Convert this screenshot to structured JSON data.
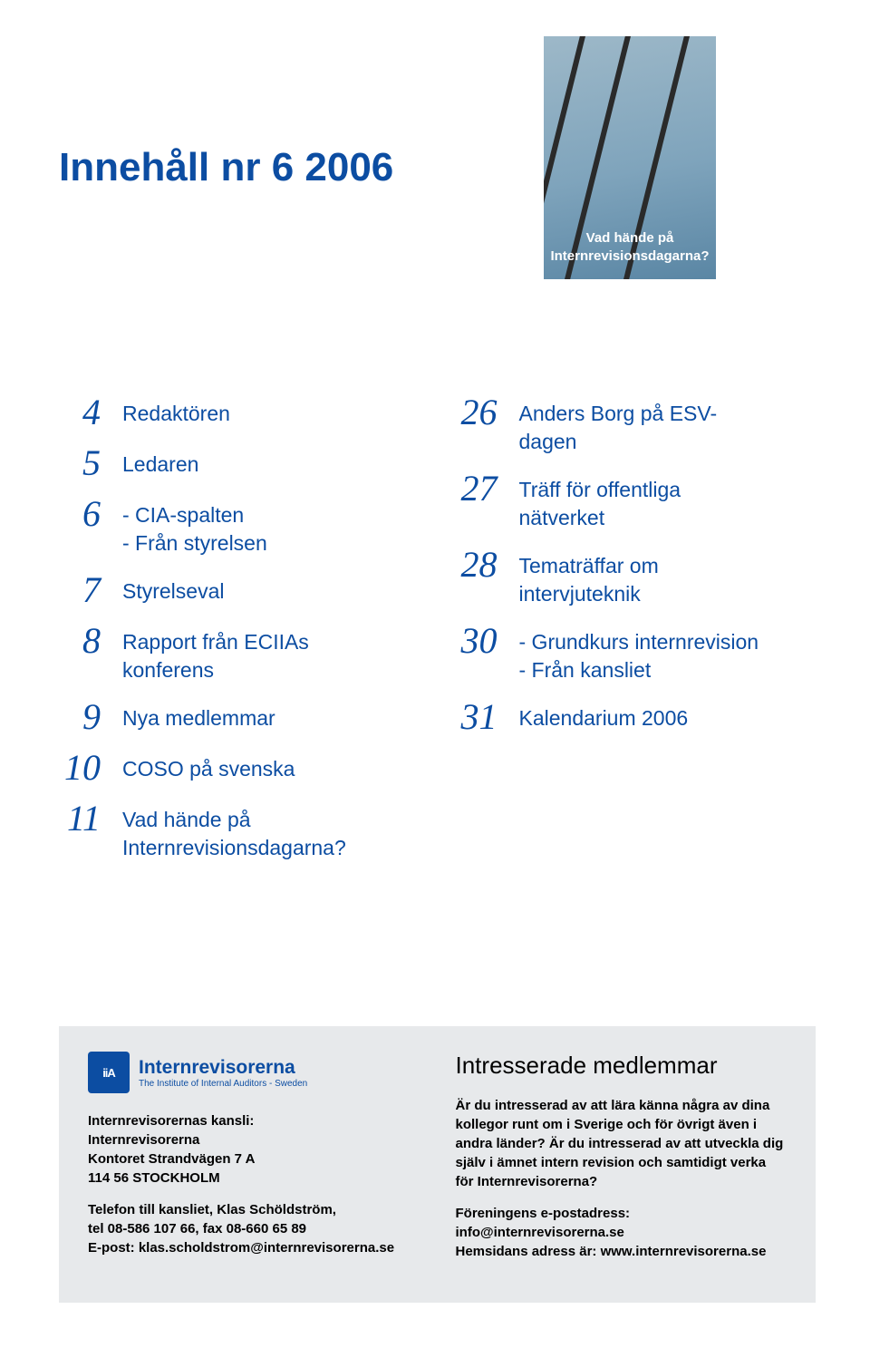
{
  "header": {
    "title": "Innehåll nr 6 2006",
    "cover_caption_line1": "Vad hände på",
    "cover_caption_line2": "Internrevisionsdagarna?"
  },
  "toc": {
    "left": [
      {
        "num": "4",
        "lines": [
          "Redaktören"
        ]
      },
      {
        "num": "5",
        "lines": [
          "Ledaren"
        ]
      },
      {
        "num": "6",
        "lines": [
          "- CIA-spalten",
          "- Från styrelsen"
        ]
      },
      {
        "num": "7",
        "lines": [
          "Styrelseval"
        ]
      },
      {
        "num": "8",
        "lines": [
          "Rapport från ECIIAs",
          "konferens"
        ]
      },
      {
        "num": "9",
        "lines": [
          "Nya medlemmar"
        ]
      },
      {
        "num": "10",
        "lines": [
          "COSO på svenska"
        ]
      },
      {
        "num": "11",
        "lines": [
          "Vad hände på",
          "Internrevisionsdagarna?"
        ]
      }
    ],
    "right": [
      {
        "num": "26",
        "lines": [
          "Anders Borg på ESV-",
          "dagen"
        ]
      },
      {
        "num": "27",
        "lines": [
          "Träff för offentliga",
          "nätverket"
        ]
      },
      {
        "num": "28",
        "lines": [
          "Tematräffar om",
          "intervjuteknik"
        ]
      },
      {
        "num": "30",
        "lines": [
          "- Grundkurs internrevision",
          "- Från kansliet"
        ]
      },
      {
        "num": "31",
        "lines": [
          "Kalendarium 2006"
        ]
      }
    ]
  },
  "footer": {
    "logo_main": "Internrevisorerna",
    "logo_sub": "The Institute of Internal Auditors - Sweden",
    "logo_badge": "iiA",
    "kansli_heading": "Internrevisorernas kansli:",
    "kansli_org": "Internrevisorerna",
    "kansli_addr1": "Kontoret Strandvägen 7 A",
    "kansli_addr2": "114 56 STOCKHOLM",
    "kansli_tel_line": "Telefon till kansliet, Klas Schöldström,",
    "kansli_tel_nums": "tel 08-586 107 66, fax 08-660 65 89",
    "kansli_email": "E-post: klas.scholdstrom@internrevisorerna.se",
    "interested_heading": "Intresserade medlemmar",
    "interested_para": "Är du intresserad av att lära känna några av dina kollegor runt om i Sverige och för övrigt även i andra länder? Är du intresserad av att utveckla dig själv i ämnet intern revision och samtidigt verka för Internrevisorerna?",
    "interested_mail": "Föreningens e-postadress: info@internrevisorerna.se",
    "interested_web": "Hemsidans adress är: www.internrevisorerna.se"
  },
  "colors": {
    "heading_blue": "#0c4da2",
    "footer_bg": "#e7e9eb"
  }
}
